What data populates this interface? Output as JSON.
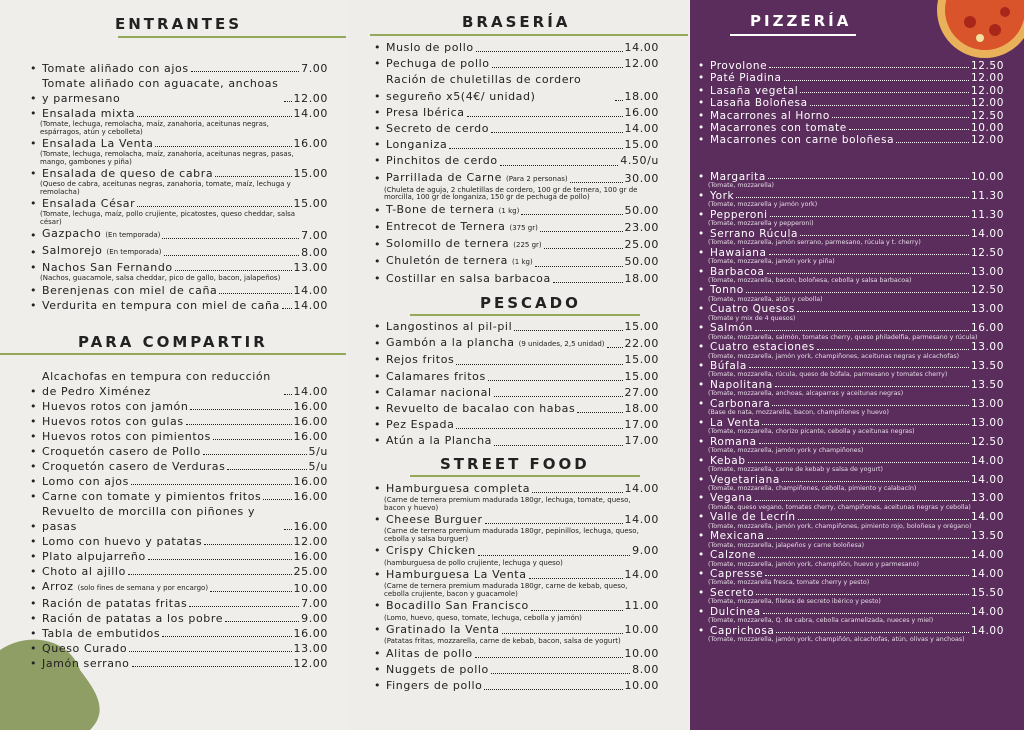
{
  "entrantes": {
    "title": "ENTRANTES",
    "items": [
      {
        "name": "Tomate aliñado con ajos",
        "price": "7.00"
      },
      {
        "name": "Tomate aliñado con aguacate, anchoas y parmesano",
        "price": "12.00"
      },
      {
        "name": "Ensalada mixta",
        "price": "14.00",
        "note": "(Tomate, lechuga, remolacha, maíz, zanahoria, aceitunas negras, espárragos, atún y cebolleta)"
      },
      {
        "name": "Ensalada La Venta",
        "price": "16.00",
        "note": "(Tomate, lechuga, remolacha, maíz, zanahoria, aceitunas negras, pasas, mango, gambones y piña)"
      },
      {
        "name": "Ensalada de queso de cabra",
        "price": "15.00",
        "note": "(Queso de cabra, aceitunas negras, zanahoria, tomate, maíz, lechuga y remolacha)"
      },
      {
        "name": "Ensalada César",
        "price": "15.00",
        "note": "(Tomate, lechuga, maíz, pollo crujiente, picatostes, queso cheddar, salsa césar)"
      },
      {
        "name": "Gazpacho",
        "price": "7.00",
        "tag": "(En temporada)"
      },
      {
        "name": "Salmorejo",
        "price": "8.00",
        "tag": "(En temporada)"
      },
      {
        "name": "Nachos San Fernando",
        "price": "13.00",
        "note": "(Nachos, guacamole, salsa cheddar, pico de gallo, bacon, jalapeños)"
      },
      {
        "name": "Berenjenas con miel de caña",
        "price": "14.00"
      },
      {
        "name": "Verdurita en tempura con miel de caña",
        "price": "14.00"
      }
    ]
  },
  "para_compartir": {
    "title": "PARA COMPARTIR",
    "items": [
      {
        "name": "Alcachofas en tempura con reducción de Pedro Ximénez",
        "price": "14.00"
      },
      {
        "name": "Huevos rotos con jamón",
        "price": "16.00"
      },
      {
        "name": "Huevos rotos con gulas",
        "price": "16.00"
      },
      {
        "name": "Huevos rotos con pimientos",
        "price": "16.00"
      },
      {
        "name": "Croquetón casero de Pollo",
        "price": "5/u"
      },
      {
        "name": "Croquetón casero de Verduras",
        "price": "5/u"
      },
      {
        "name": "Lomo con ajos",
        "price": "16.00"
      },
      {
        "name": "Carne con tomate y pimientos fritos",
        "price": "16.00"
      },
      {
        "name": "Revuelto de morcilla con piñones y pasas",
        "price": "16.00"
      },
      {
        "name": "Lomo con huevo y patatas",
        "price": "12.00"
      },
      {
        "name": "Plato alpujarreño",
        "price": "16.00"
      },
      {
        "name": "Choto al ajillo",
        "price": "25.00"
      },
      {
        "name": "Arroz",
        "price": "10.00",
        "tag": "(solo fines de semana y por encargo)"
      },
      {
        "name": "Ración de patatas fritas",
        "price": "7.00"
      },
      {
        "name": "Ración de patatas a los pobre",
        "price": "9.00"
      },
      {
        "name": "Tabla de embutidos",
        "price": "16.00"
      },
      {
        "name": "Queso Curado",
        "price": "13.00"
      },
      {
        "name": "Jamón serrano",
        "price": "12.00"
      }
    ]
  },
  "braseria": {
    "title": "BRASERÍA",
    "items": [
      {
        "name": "Muslo de pollo",
        "price": "14.00"
      },
      {
        "name": "Pechuga de pollo",
        "price": "12.00"
      },
      {
        "name": "Ración de chuletillas de cordero segureño x5(4€/ unidad)",
        "price": "18.00"
      },
      {
        "name": "Presa Ibérica",
        "price": "16.00"
      },
      {
        "name": "Secreto de cerdo",
        "price": "14.00"
      },
      {
        "name": "Longaniza",
        "price": "15.00"
      },
      {
        "name": "Pinchitos de cerdo",
        "price": "4.50/u"
      },
      {
        "name": "Parrillada de Carne",
        "price": "30.00",
        "tag": "(Para 2 personas)",
        "note": "(Chuleta de aguja, 2 chuletillas de cordero, 100 gr de ternera, 100 gr de morcilla, 100 gr de longaniza, 150 gr de pechuga de pollo)"
      },
      {
        "name": "T-Bone de ternera",
        "price": "50.00",
        "tag": "(1 kg)"
      },
      {
        "name": "Entrecot de Ternera",
        "price": "23.00",
        "tag": "(375 gr)"
      },
      {
        "name": "Solomillo de ternera",
        "price": "25.00",
        "tag": "(225 gr)"
      },
      {
        "name": "Chuletón de ternera",
        "price": "50.00",
        "tag": "(1 kg)"
      },
      {
        "name": "Costillar en salsa barbacoa",
        "price": "18.00"
      }
    ]
  },
  "pescado": {
    "title": "PESCADO",
    "items": [
      {
        "name": "Langostinos al pil-pil",
        "price": "15.00"
      },
      {
        "name": "Gambón a la plancha",
        "price": "22.00",
        "tag": "(9 unidades, 2,5 unidad)"
      },
      {
        "name": "Rejos fritos",
        "price": "15.00"
      },
      {
        "name": "Calamares fritos",
        "price": "15.00"
      },
      {
        "name": "Calamar nacional",
        "price": "27.00"
      },
      {
        "name": "Revuelto de bacalao con habas",
        "price": "18.00"
      },
      {
        "name": "Pez Espada",
        "price": "17.00"
      },
      {
        "name": "Atún a la Plancha",
        "price": "17.00"
      }
    ]
  },
  "street_food": {
    "title": "STREET FOOD",
    "items": [
      {
        "name": "Hamburguesa completa",
        "price": "14.00",
        "note": "(Carne de ternera premium madurada 180gr, lechuga, tomate, queso, bacon y huevo)"
      },
      {
        "name": "Cheese Burguer",
        "price": "14.00",
        "note": "(Carne de ternera premium madurada 180gr, pepinillos, lechuga, queso, cebolla y salsa burguer)"
      },
      {
        "name": "Crispy Chicken",
        "price": "9.00",
        "note": "(hamburguesa de pollo crujiente, lechuga y queso)"
      },
      {
        "name": "Hamburguesa La Venta",
        "price": "14.00",
        "note": "(Carne de ternera premium madurada 180gr, carne de kebab, queso, cebolla crujiente, bacon y guacamole)"
      },
      {
        "name": "Bocadillo San Francisco",
        "price": "11.00",
        "note": "(Lomo, huevo, queso, tomate, lechuga, cebolla y jamón)"
      },
      {
        "name": "Gratinado la Venta",
        "price": "10.00",
        "note": "(Patatas fritas, mozzarella, carne de kebab, bacon, salsa de yogurt)"
      },
      {
        "name": "Alitas de pollo",
        "price": "10.00"
      },
      {
        "name": "Nuggets de pollo",
        "price": "8.00"
      },
      {
        "name": "Fingers de pollo",
        "price": "10.00"
      }
    ]
  },
  "pizzeria": {
    "title": "PIZZERÍA",
    "items": [
      {
        "name": "Provolone",
        "price": "12.50"
      },
      {
        "name": "Paté Piadina",
        "price": "12.00"
      },
      {
        "name": "Lasaña vegetal",
        "price": "12.00"
      },
      {
        "name": "Lasaña Boloñesa",
        "price": "12.00"
      },
      {
        "name": "Macarrones al Horno",
        "price": "12.50"
      },
      {
        "name": "Macarrones con tomate",
        "price": "10.00"
      },
      {
        "name": "Macarrones con carne boloñesa",
        "price": "12.00"
      }
    ]
  },
  "pizzas": {
    "items": [
      {
        "name": "Margarita",
        "price": "10.00",
        "note": "(Tomate, mozzarella)"
      },
      {
        "name": "York",
        "price": "11.30",
        "note": "(Tomate, mozzarella y jamón york)"
      },
      {
        "name": "Pepperoni",
        "price": "11.30",
        "note": "(Tomate, mozzarella y pepperoni)"
      },
      {
        "name": "Serrano Rúcula",
        "price": "14.00",
        "note": "(Tomate, mozzarella, jamón serrano, parmesano, rúcula y t. cherry)"
      },
      {
        "name": "Hawaiana",
        "price": "12.50",
        "note": "(Tomate, mozzarella, jamón york y piña)"
      },
      {
        "name": "Barbacoa",
        "price": "13.00",
        "note": "(Tomate, mozzarella, bacon, boloñesa, cebolla y salsa barbacoa)"
      },
      {
        "name": "Tonno",
        "price": "12.50",
        "note": "(Tomate, mozzarella, atún y cebolla)"
      },
      {
        "name": "Cuatro Quesos",
        "price": "13.00",
        "note": "(Tomate y mix de 4 quesos)"
      },
      {
        "name": "Salmón",
        "price": "16.00",
        "note": "(Tomate, mozzarella, salmón, tomates cherry, queso philadelfia, parmesano y rúcula)"
      },
      {
        "name": "Cuatro estaciones",
        "price": "13.00",
        "note": "(Tomate, mozzarella, jamón york, champiñones, aceitunas negras y alcachofas)"
      },
      {
        "name": "Búfala",
        "price": "13.50",
        "note": "(Tomate, mozzarella, rúcula, queso de búfala, parmesano y tomates cherry)"
      },
      {
        "name": "Napolitana",
        "price": "13.50",
        "note": "(Tomate, mozzarella, anchoas, alcaparras y aceitunas negras)"
      },
      {
        "name": "Carbonara",
        "price": "13.00",
        "note": "(Base de nata, mozzarella, bacon, champiñones y huevo)"
      },
      {
        "name": "La Venta",
        "price": "13.00",
        "note": "(Tomate, mozzarella, chorizo picante, cebolla y aceitunas negras)"
      },
      {
        "name": "Romana",
        "price": "12.50",
        "note": "(Tomate, mozzarella, jamón york y champiñones)"
      },
      {
        "name": "Kebab",
        "price": "14.00",
        "note": "(Tomate, mozzarella, carne de kebab y salsa de yogurt)"
      },
      {
        "name": "Vegetariana",
        "price": "14.00",
        "note": "(Tomate, mozzarella, champiñones, cebolla, pimiento y calabacín)"
      },
      {
        "name": "Vegana",
        "price": "13.00",
        "note": "(Tomate, queso vegano, tomates cherry, champiñones, aceitunas negras y cebolla)"
      },
      {
        "name": "Valle de Lecrín",
        "price": "14.00",
        "note": "(Tomate, mozzarella, jamón york, champiñones, pimiento rojo, boloñesa y orégano)"
      },
      {
        "name": "Mexicana",
        "price": "13.50",
        "note": "(Tomate, mozzarella, jalapeños y carne boloñesa)"
      },
      {
        "name": "Calzone",
        "price": "14.00",
        "note": "(Tomate, mozzarella, jamón york, champiñón, huevo y parmesano)"
      },
      {
        "name": "Capresse",
        "price": "14.00",
        "note": "(Tomate, mozzarella fresca, tomate cherry y pesto)"
      },
      {
        "name": "Secreto",
        "price": "15.50",
        "note": "(Tomate, mozzarella, filetes de secreto ibérico y pesto)"
      },
      {
        "name": "Dulcinea",
        "price": "14.00",
        "note": "(Tomate, mozzarella, Q. de cabra, cebolla caramelizada, nueces y miel)"
      },
      {
        "name": "Caprichosa",
        "price": "14.00",
        "note": "(Tomate, mozzarella, jamón york, champiñón, alcachofas, atún, olivas y anchoas)"
      }
    ]
  }
}
